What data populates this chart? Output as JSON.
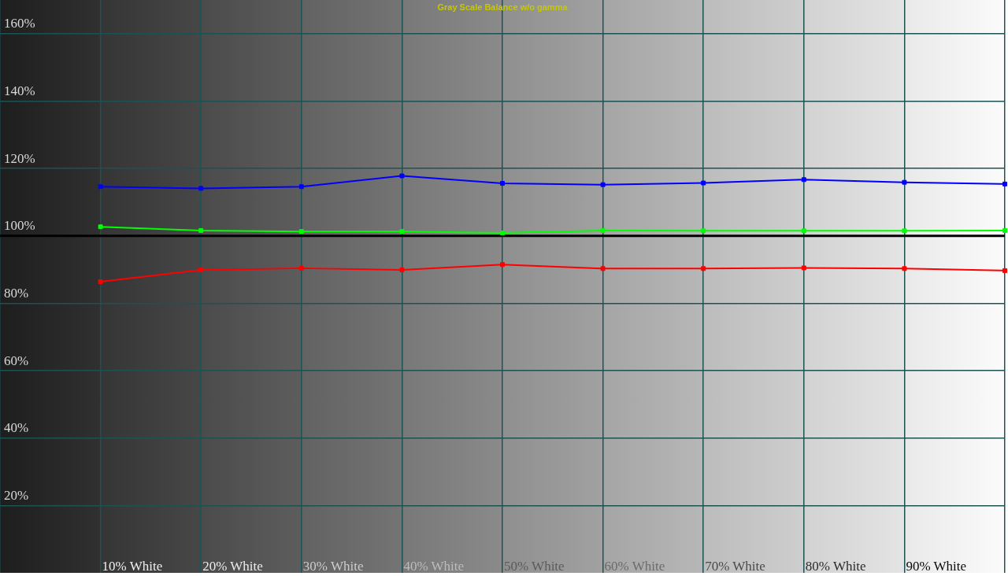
{
  "chart_data": {
    "type": "line",
    "title": "Gray Scale Balance w/o gamma",
    "categories": [
      "10% White",
      "20% White",
      "30% White",
      "40% White",
      "50% White",
      "60% White",
      "70% White",
      "80% White",
      "90% White",
      null
    ],
    "series": [
      {
        "color": "#0000ff",
        "values": [
          114.6,
          114.1,
          114.6,
          117.8,
          115.6,
          115.2,
          115.7,
          116.7,
          115.9,
          115.4
        ]
      },
      {
        "color": "#00ff00",
        "values": [
          102.7,
          101.6,
          101.3,
          101.3,
          100.9,
          101.6,
          101.5,
          101.5,
          101.5,
          101.6
        ]
      },
      {
        "color": "#ff0000",
        "values": [
          86.4,
          89.9,
          90.4,
          89.9,
          91.5,
          90.3,
          90.3,
          90.5,
          90.3,
          89.7
        ]
      }
    ],
    "ylim": [
      0,
      170
    ],
    "yticks": [
      {
        "value": 20,
        "label": "20%"
      },
      {
        "value": 40,
        "label": "40%"
      },
      {
        "value": 60,
        "label": "60%"
      },
      {
        "value": 80,
        "label": "80%"
      },
      {
        "value": 100,
        "label": "100%"
      },
      {
        "value": 120,
        "label": "120%"
      },
      {
        "value": 140,
        "label": "140%"
      },
      {
        "value": 160,
        "label": "160%"
      }
    ],
    "grid": true,
    "marker": "square",
    "line_style": "solid",
    "ref_lines": [
      {
        "axis": "y",
        "value": 100,
        "color": "#000000"
      }
    ]
  }
}
